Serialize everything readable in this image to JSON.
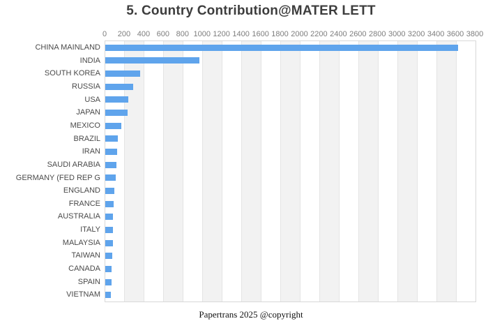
{
  "page": {
    "title": "5. Country Contribution@MATER LETT",
    "footer": "Papertrans 2025 @copyright"
  },
  "chart_data": {
    "type": "bar",
    "orientation": "horizontal",
    "title": "5. Country Contribution@MATER LETT",
    "categories": [
      "CHINA MAINLAND",
      "INDIA",
      "SOUTH KOREA",
      "RUSSIA",
      "USA",
      "JAPAN",
      "MEXICO",
      "BRAZIL",
      "IRAN",
      "SAUDI ARABIA",
      "GERMANY (FED REP G",
      "ENGLAND",
      "FRANCE",
      "AUSTRALIA",
      "ITALY",
      "MALAYSIA",
      "TAIWAN",
      "CANADA",
      "SPAIN",
      "VIETNAM"
    ],
    "values": [
      3618,
      969,
      357,
      286,
      238,
      229,
      162,
      129,
      121,
      113,
      110,
      95,
      88,
      79,
      77,
      76,
      69,
      65,
      64,
      55
    ],
    "xlabel": "",
    "ylabel": "",
    "axis": {
      "min": 0,
      "max": 3800,
      "tick_step": 200,
      "tick_position": "top"
    },
    "ticks": [
      0,
      200,
      400,
      600,
      800,
      1000,
      1200,
      1400,
      1600,
      1800,
      2000,
      2200,
      2400,
      2600,
      2800,
      3000,
      3200,
      3400,
      3600,
      3800
    ],
    "grid": "vertical-lines-with-alternating-bands",
    "legend": "none",
    "footer": "Papertrans 2025 @copyright",
    "colors": {
      "bar": "#5FA4EC",
      "band": "#F2F2F2",
      "gridline": "#E4E4E4",
      "plot_border": "#D8D8D8",
      "title_text": "#3D3D3D",
      "axis_text": "#7D7D7D",
      "category_text": "#4A4A4A"
    }
  }
}
